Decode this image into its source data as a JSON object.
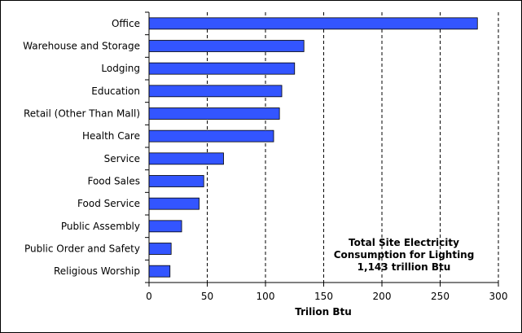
{
  "chart_data": {
    "type": "bar",
    "orientation": "horizontal",
    "title": "",
    "xlabel": "Trilion Btu",
    "ylabel": "",
    "xlim": [
      0,
      300
    ],
    "x_ticks": [
      0,
      50,
      100,
      150,
      200,
      250,
      300
    ],
    "x_tick_labels": [
      "0",
      "50",
      "100",
      "150",
      "200",
      "250",
      "300"
    ],
    "grid": "vertical dashed",
    "bar_color": "#3355ff",
    "categories": [
      "Office",
      "Warehouse and Storage",
      "Lodging",
      "Education",
      "Retail (Other Than Mall)",
      "Health Care",
      "Service",
      "Food Sales",
      "Food Service",
      "Public Assembly",
      "Public Order and Safety",
      "Religious Worship"
    ],
    "values": [
      282,
      133,
      125,
      114,
      112,
      107,
      64,
      47,
      43,
      28,
      19,
      18
    ],
    "annotation": {
      "line1": "Total Site Electricity",
      "line2": "Consumption for Lighting",
      "line3": "1,143 trillion Btu"
    }
  }
}
